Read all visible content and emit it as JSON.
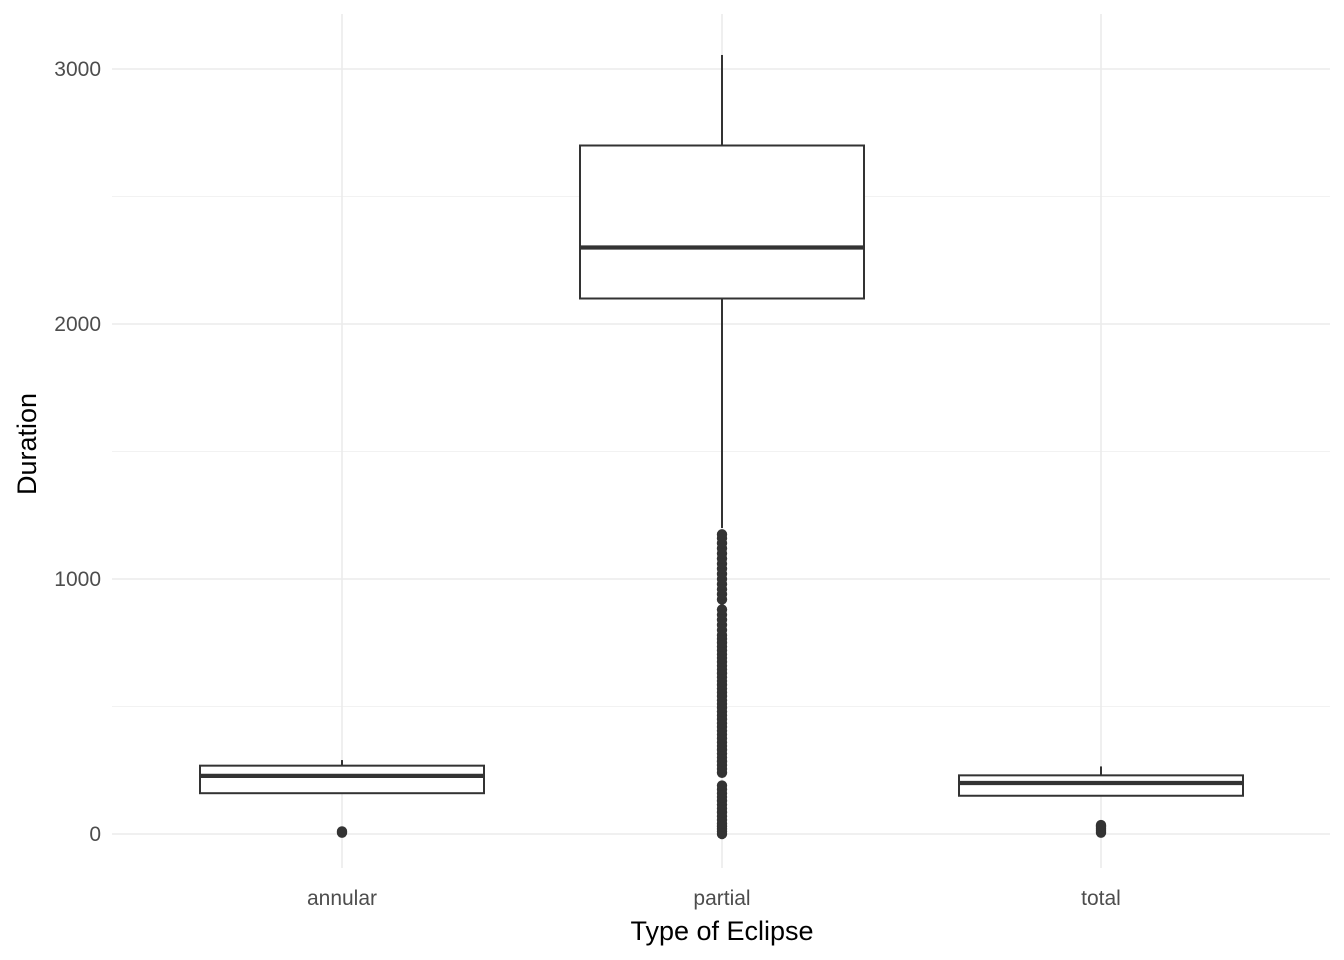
{
  "chart_data": {
    "type": "boxplot",
    "title": "",
    "xlabel": "Type of Eclipse",
    "ylabel": "Duration",
    "categories": [
      "annular",
      "partial",
      "total"
    ],
    "ylim": [
      -140,
      3210
    ],
    "yticks": [
      0,
      1000,
      2000,
      3000
    ],
    "yticks_minor": [
      500,
      1500,
      2500
    ],
    "grid": true,
    "legend": "none",
    "box_color": "#333333",
    "fill_color": "#ffffff",
    "grid_color": "#ebebeb",
    "boxes": [
      {
        "category": "annular",
        "whisker_low": 160,
        "q1": 160,
        "median": 228,
        "q3": 268,
        "whisker_high": 290,
        "outliers": [
          5,
          10
        ]
      },
      {
        "category": "partial",
        "whisker_low": 1200,
        "q1": 2100,
        "median": 2300,
        "q3": 2700,
        "whisker_high": 3055,
        "outliers": [
          0,
          10,
          20,
          30,
          40,
          55,
          70,
          85,
          100,
          115,
          130,
          145,
          160,
          175,
          190,
          240,
          255,
          270,
          285,
          300,
          315,
          330,
          345,
          360,
          375,
          390,
          405,
          420,
          435,
          450,
          465,
          480,
          495,
          510,
          525,
          540,
          555,
          570,
          585,
          600,
          615,
          630,
          645,
          660,
          675,
          690,
          705,
          720,
          735,
          750,
          765,
          780,
          800,
          820,
          840,
          860,
          880,
          920,
          940,
          960,
          980,
          1000,
          1020,
          1040,
          1060,
          1080,
          1100,
          1120,
          1140,
          1160,
          1175
        ]
      },
      {
        "category": "total",
        "whisker_low": 150,
        "q1": 150,
        "median": 200,
        "q3": 230,
        "whisker_high": 265,
        "outliers": [
          5,
          12,
          20,
          28,
          35
        ]
      }
    ]
  }
}
